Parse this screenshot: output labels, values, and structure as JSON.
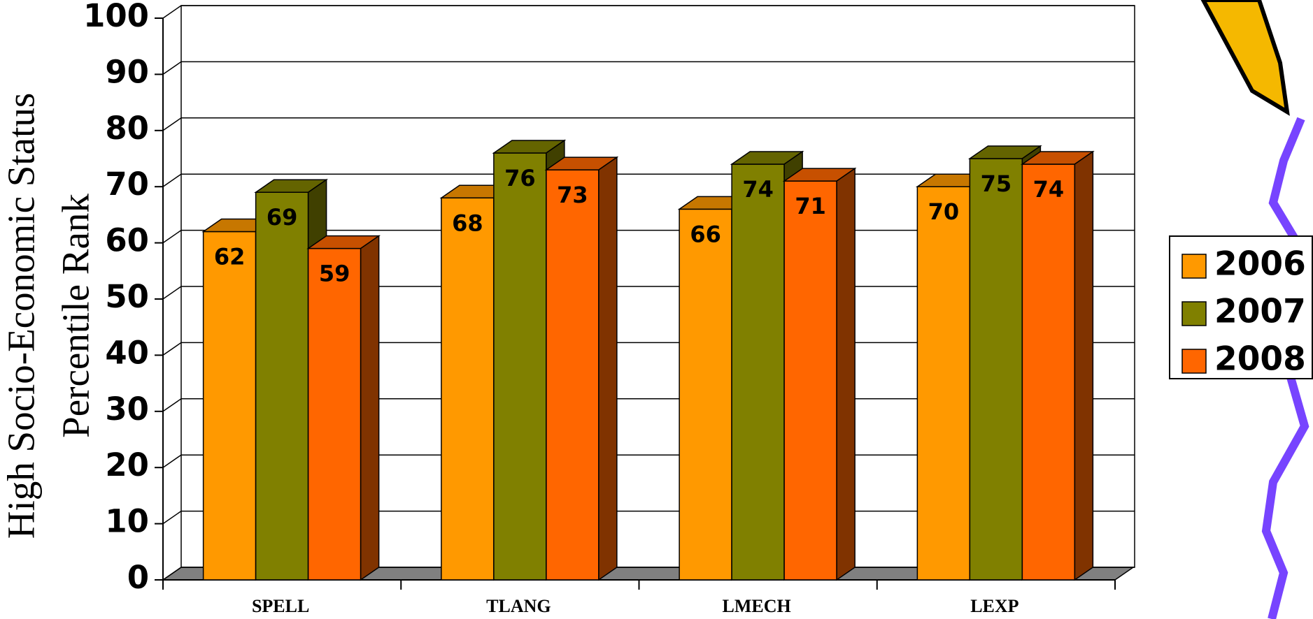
{
  "chart_data": {
    "type": "bar3d",
    "y_label": [
      "High Socio-Economic Status",
      "Percentile Rank"
    ],
    "categories": [
      "SPELL",
      "TLANG",
      "LMECH",
      "LEXP"
    ],
    "series": [
      {
        "name": "2006",
        "color": "#FF9900",
        "values": [
          62,
          68,
          66,
          70
        ]
      },
      {
        "name": "2007",
        "color": "#808000",
        "values": [
          69,
          76,
          74,
          75
        ]
      },
      {
        "name": "2008",
        "color": "#FF6600",
        "values": [
          59,
          73,
          71,
          74
        ]
      }
    ],
    "ylim": [
      0,
      100
    ],
    "yticks": [
      0,
      10,
      20,
      30,
      40,
      50,
      60,
      70,
      80,
      90,
      100
    ],
    "grid": true,
    "legend": "right"
  }
}
